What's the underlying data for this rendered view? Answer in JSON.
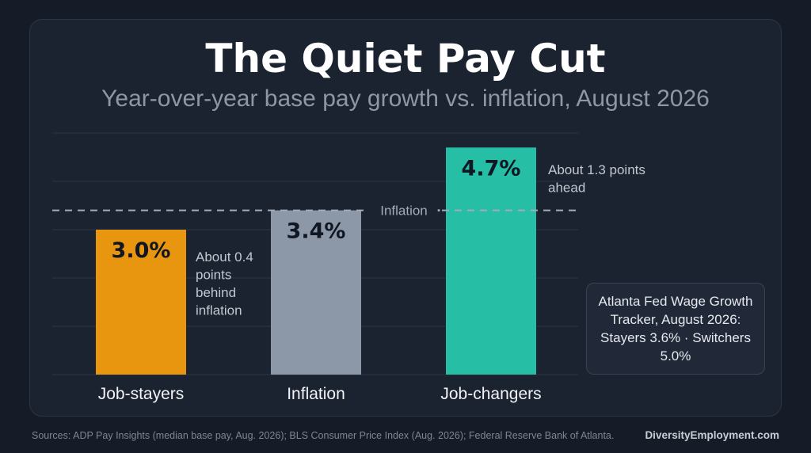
{
  "header": {
    "title": "The Quiet Pay Cut",
    "subtitle": "Year-over-year base pay growth vs. inflation, August 2026"
  },
  "chart_data": {
    "type": "bar",
    "categories": [
      "Job-stayers",
      "Inflation",
      "Job-changers"
    ],
    "values": [
      3.0,
      3.4,
      4.7
    ],
    "value_labels": [
      "3.0%",
      "3.4%",
      "4.7%"
    ],
    "colors": [
      "#e8960f",
      "#8c98a8",
      "#26bfa6"
    ],
    "ylim": [
      0,
      5
    ],
    "grid": true,
    "reference_line": {
      "value": 3.4,
      "label": "Inflation"
    },
    "annotations": [
      {
        "category": "Job-stayers",
        "text": [
          "About 0.4",
          "points",
          "behind",
          "inflation"
        ]
      },
      {
        "category": "Job-changers",
        "text": [
          "About 1.3 points",
          "ahead"
        ]
      }
    ],
    "callout": "Atlanta Fed Wage Growth Tracker, August 2026: Stayers 3.6% · Switchers 5.0%"
  },
  "footer": {
    "sources": "Sources: ADP Pay Insights (median base pay, Aug. 2026); BLS Consumer Price Index (Aug. 2026); Federal Reserve Bank of Atlanta.",
    "brand": "DiversityEmployment.com"
  }
}
